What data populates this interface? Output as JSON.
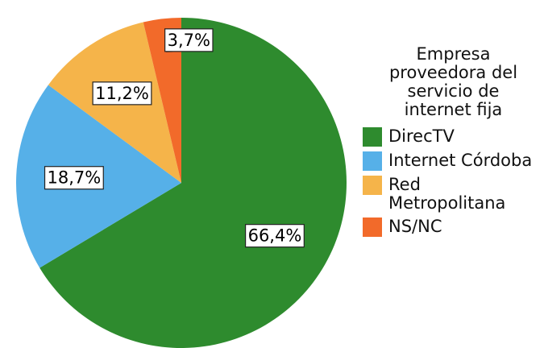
{
  "chart_data": {
    "type": "pie",
    "legend_title": "Empresa proveedora del servicio de internet fija",
    "categories": [
      "DirecTV",
      "Internet Córdoba",
      "Red Metropolitana",
      "NS/NC"
    ],
    "values": [
      66.4,
      18.7,
      11.2,
      3.7
    ],
    "value_labels": [
      "66,4%",
      "18,7%",
      "11,2%",
      "3,7%"
    ],
    "colors": [
      "#2e8b2e",
      "#56b0e8",
      "#f5b44a",
      "#f26a2a"
    ],
    "legend": "right"
  }
}
